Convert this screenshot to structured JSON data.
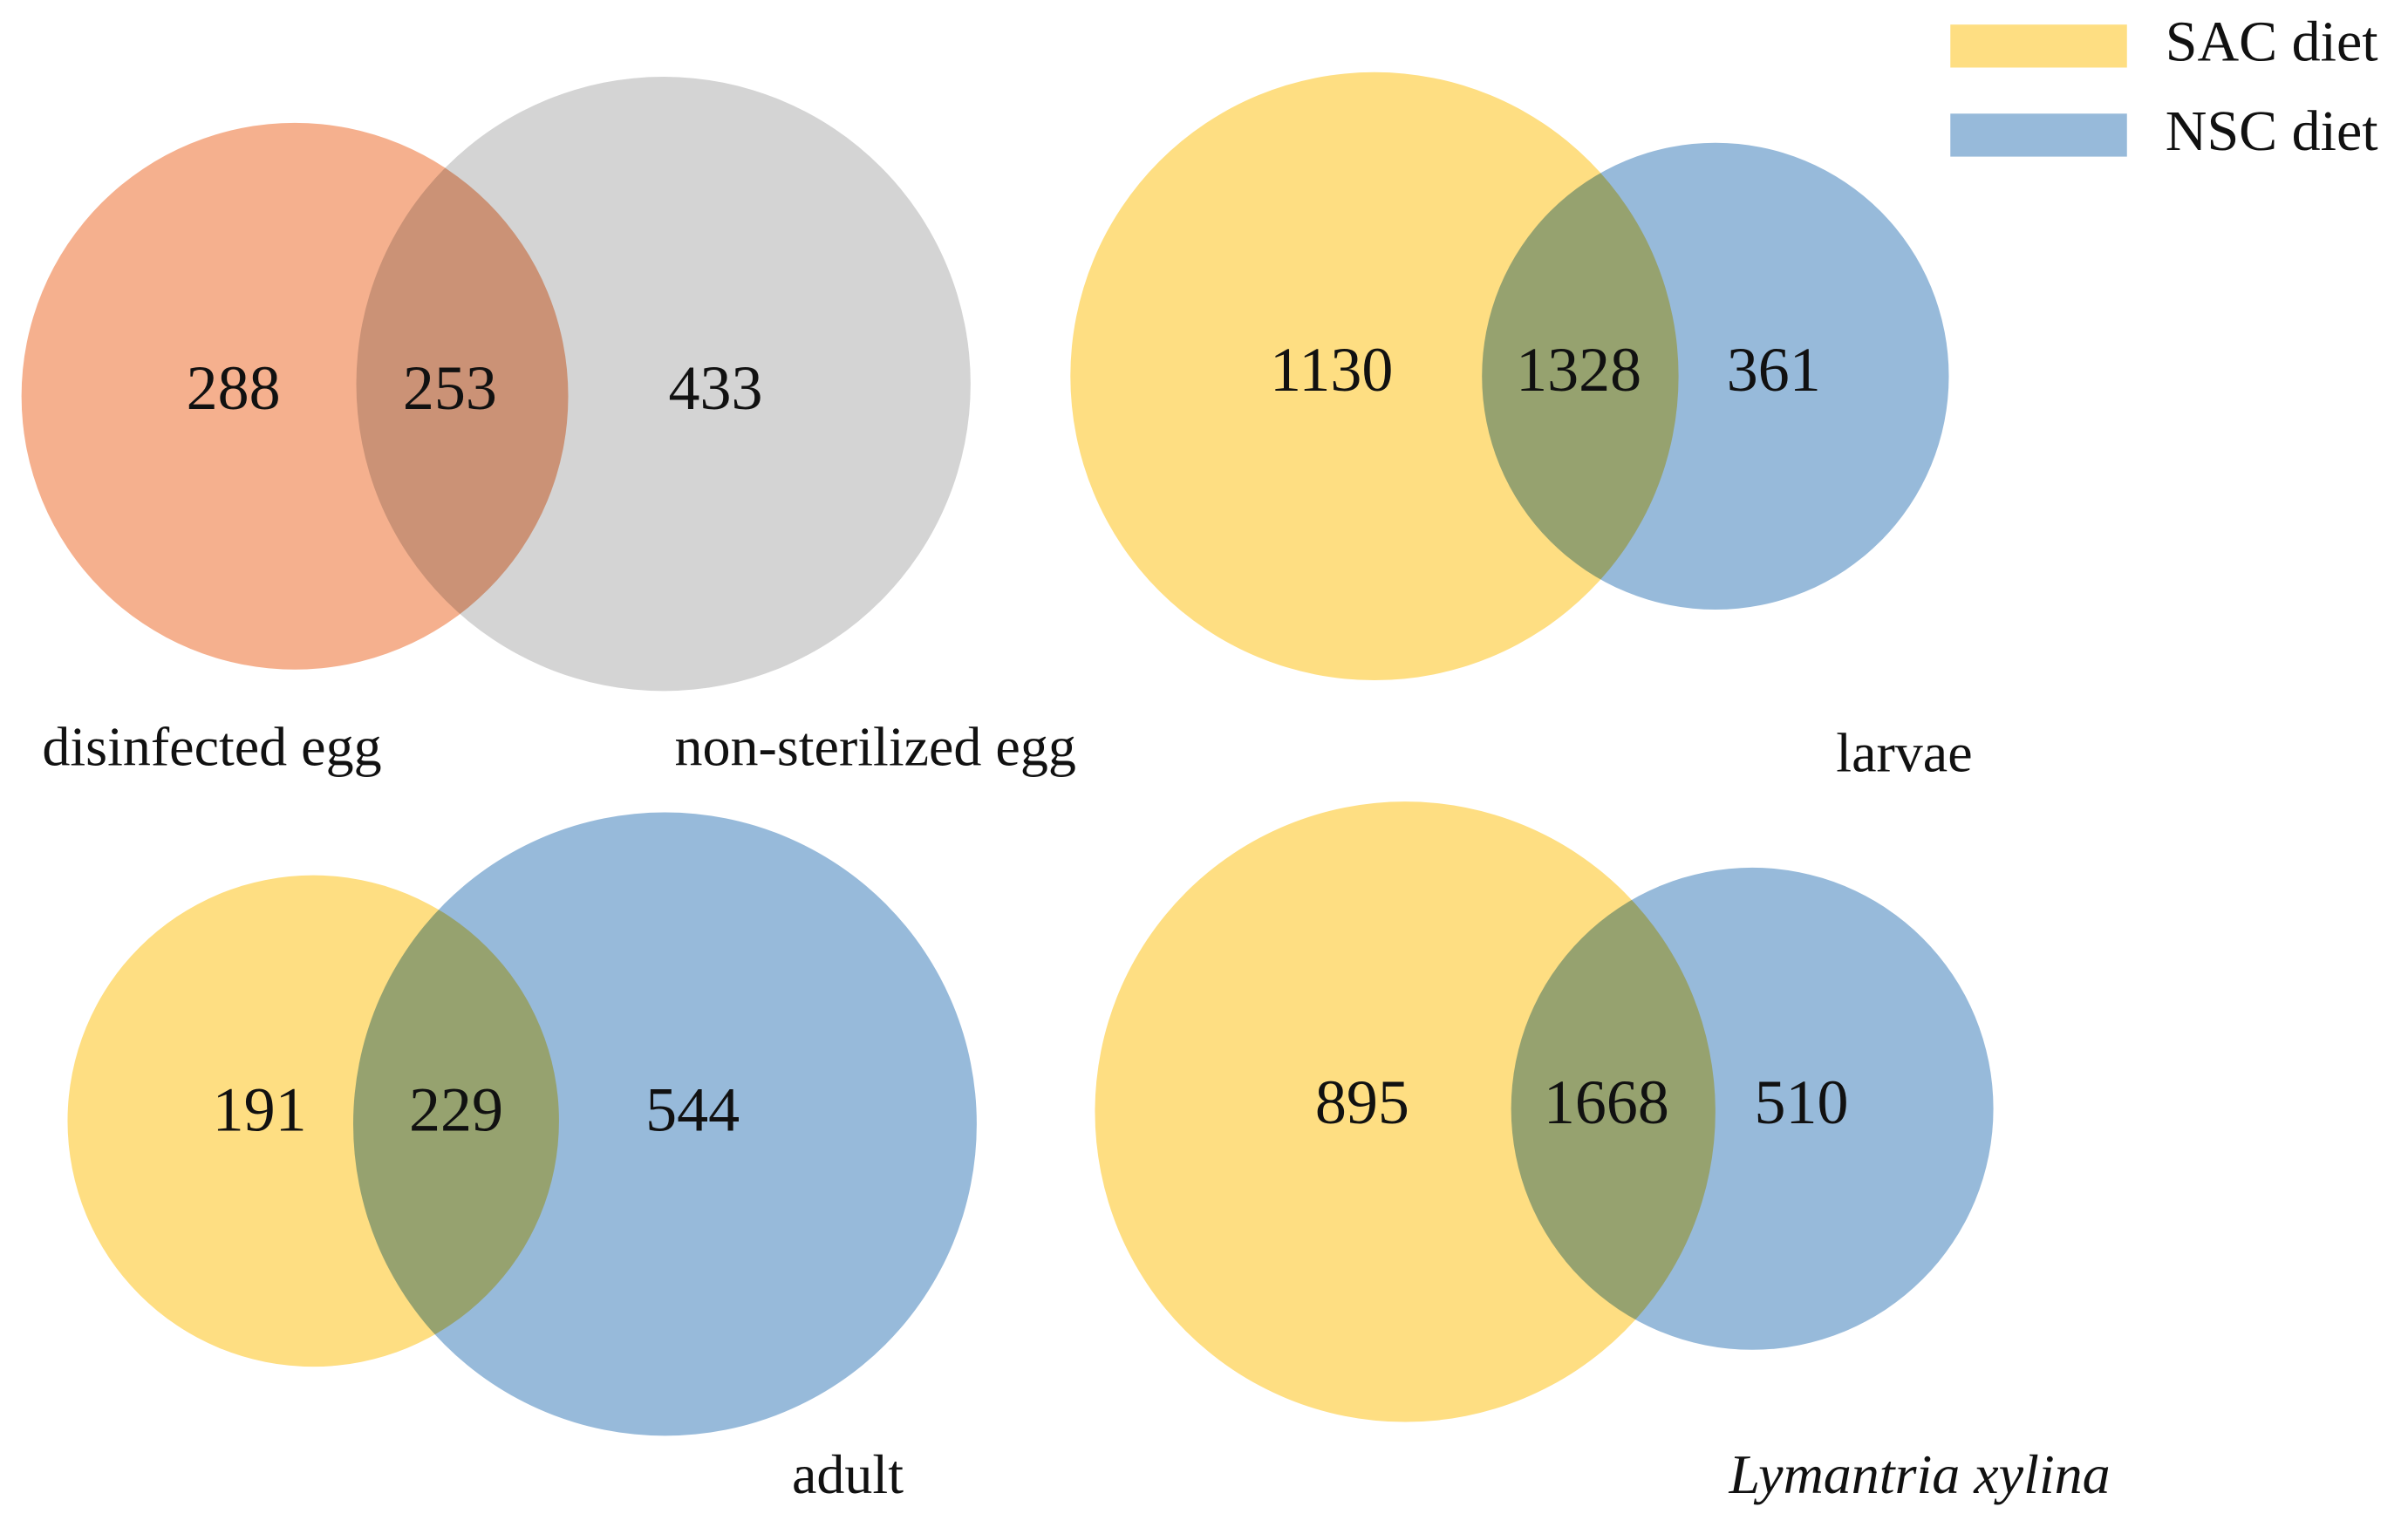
{
  "chart_data": [
    {
      "type": "venn",
      "sets": [
        {
          "name": "disinfected egg",
          "color": "#f5b08e"
        },
        {
          "name": "non-sterilized egg",
          "color": "#d4d4d4"
        }
      ],
      "values": [
        288,
        253,
        433
      ]
    },
    {
      "type": "venn",
      "label": "larvae",
      "values": [
        1130,
        1328,
        361
      ]
    },
    {
      "type": "venn",
      "label": "adult",
      "values": [
        191,
        229,
        544
      ]
    },
    {
      "type": "venn",
      "label": "Lymantria xylina",
      "label_italic": true,
      "values": [
        895,
        1668,
        510
      ]
    }
  ],
  "legend": [
    {
      "name": "SAC diet",
      "color": "#fede82"
    },
    {
      "name": "NSC diet",
      "color": "#97bada"
    }
  ]
}
